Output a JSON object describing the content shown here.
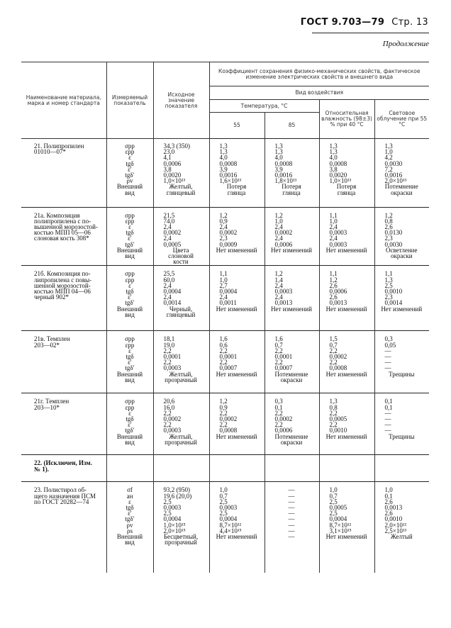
{
  "page_header": {
    "standard": "ГОСТ 9.703—79",
    "page": "Стр. 13"
  },
  "continuation": "Продолжение",
  "table_header": {
    "col_name": "Наименование материала, марка и номер стандарта",
    "col_param": "Измеряемый показатель",
    "col_initial": "Исходное значение показателя",
    "group": "Коэффициент сохранения физико-механических свойств, фактическое изменение электрических свойств и внешнего вида",
    "exposure": "Вид воздействия",
    "temperature": "Температура, °С",
    "t55": "55",
    "t85": "85",
    "humidity": "Относительная влажность (98±3) % при 40 °С",
    "light": "Световое облучение при 55 °С"
  },
  "rows": [
    {
      "name": "21. Полипропилен\n01010—07*",
      "bold": false,
      "params": [
        "σрр",
        "εрр",
        "ε",
        "tgδ",
        "ε′",
        "tgδ′",
        "ρv",
        "Внешний\nвид"
      ],
      "initial": [
        "34,3 (350)",
        "23,0",
        "4,1",
        "0,0006",
        "3,8",
        "0,0020",
        "1,0×10¹³",
        "Желтый,\nглянцевый"
      ],
      "t55": [
        "1,3",
        "1,3",
        "4,0",
        "0,0008",
        "3,9",
        "0,0016",
        "1,6×10¹³",
        "Потеря\nглянца"
      ],
      "t85": [
        "1,3",
        "1,3",
        "4,0",
        "0,0008",
        "3,9",
        "0,0016",
        "1,8×10¹³",
        "Потеря\nглянца"
      ],
      "humidity": [
        "1,3",
        "1,3",
        "4,0",
        "0,0008",
        "3,8",
        "0,0020",
        "1,0×10¹³",
        "Потеря\nглянца"
      ],
      "light": [
        "1,3",
        "1,0",
        "4,2",
        "0,0030",
        "7,2",
        "0,0016",
        "2,0×10¹³",
        "Потемнение\nокраски"
      ]
    },
    {
      "name": "21а. Композиция\nполипропилена с по-\nвышенной морозостой-\nкостью МПП 05—06\nслоновая кость 308*",
      "bold": false,
      "params": [
        "σрр",
        "εрр",
        "ε",
        "tgδ",
        "ε′",
        "tgδ′",
        "Внешний\nвид"
      ],
      "initial": [
        "21,5",
        "74,0",
        "2,4",
        "0,0002",
        "2,4",
        "0,0005",
        "Цвета\nслоновой\nкости"
      ],
      "t55": [
        "1,2",
        "0,9",
        "2,4",
        "0,0002",
        "2,3",
        "0,0009",
        "Нет изменений"
      ],
      "t85": [
        "1,2",
        "1,0",
        "2,4",
        "0,0002",
        "2,4",
        "0,0006",
        "Нет изменений"
      ],
      "humidity": [
        "1,1",
        "1,0",
        "2,4",
        "0,0003",
        "2,4",
        "0,0003",
        "Нет изменений"
      ],
      "light": [
        "1,2",
        "0,8",
        "2,6",
        "0,0130",
        "2,3",
        "0,0030",
        "Осветление\nокраски"
      ]
    },
    {
      "name": "21б. Композиция по-\nлипропилена с повы-\nшенной морозостой-\nкостью МПП 04—06\nчерный 902*",
      "bold": false,
      "params": [
        "σрр",
        "εрр",
        "ε",
        "tgδ",
        "ε′",
        "tgδ′",
        "Внешний\nвид"
      ],
      "initial": [
        "25,5",
        "60,0",
        "2,4",
        "0,0004",
        "2,4",
        "0,0014",
        "Черный,\nглянцевый"
      ],
      "t55": [
        "1,1",
        "1,0",
        "2,7",
        "0,0004",
        "2,4",
        "0,0011",
        "Нет изменений"
      ],
      "t85": [
        "1,2",
        "1,4",
        "2,4",
        "0,0003",
        "2,4",
        "0,0013",
        "Нет изменений"
      ],
      "humidity": [
        "1,1",
        "1,2",
        "2,6",
        "0,0006",
        "2,6",
        "0,0013",
        "Нет изменений"
      ],
      "light": [
        "1,1",
        "1,3",
        "2,5",
        "0,0010",
        "2,3",
        "0,0014",
        "Нет изменений"
      ]
    },
    {
      "name": "21в. Темплен\n203—02*",
      "bold": false,
      "params": [
        "σрр",
        "εрр",
        "ε",
        "tgδ",
        "ε′",
        "tgδ′",
        "Внешний\nвид"
      ],
      "initial": [
        "18,1",
        "19,0",
        "2,2",
        "0,0001",
        "2,2",
        "0,0003",
        "Желтый,\nпрозрачный"
      ],
      "t55": [
        "1,6",
        "0,6",
        "2,2",
        "0,0001",
        "2,2",
        "0,0007",
        "Нет изменений"
      ],
      "t85": [
        "1,6",
        "0,7",
        "2,2",
        "0,0001",
        "2,2",
        "0,0007",
        "Потемнение\nокраски"
      ],
      "humidity": [
        "1,5",
        "0,7",
        "2,2",
        "0,0002",
        "2,2",
        "0,0008",
        "Нет изменений"
      ],
      "light": [
        "0,3",
        "0,05",
        "—",
        "—",
        "—",
        "—",
        "Трещины"
      ]
    },
    {
      "name": "21г. Темплен\n203—10*",
      "bold": false,
      "params": [
        "σрр",
        "εрр",
        "ε",
        "tgδ",
        "ε′",
        "tgδ′",
        "Внешний\nвид"
      ],
      "initial": [
        "20,6",
        "16,0",
        "2,2",
        "0,0002",
        "2,2",
        "0,0003",
        "Желтый,\nпрозрачный"
      ],
      "t55": [
        "1,2",
        "0,9",
        "2,2",
        "0,0002",
        "2,2",
        "0,0008",
        "Нет изменений"
      ],
      "t85": [
        "0,3",
        "0,1",
        "2,2",
        "0,0002",
        "2,2",
        "0,0006",
        "Потемнение\nокраски"
      ],
      "humidity": [
        "1,3",
        "0,8",
        "2,2",
        "0,0005",
        "2,2",
        "0,0010",
        "Нет изменений"
      ],
      "light": [
        "0,1",
        "0,1",
        "—",
        "—",
        "—",
        "—",
        "Трещины"
      ]
    },
    {
      "name": "22. (Исключен, Изм.\n№ 1).",
      "bold": true,
      "params": [],
      "initial": [],
      "t55": [],
      "t85": [],
      "humidity": [],
      "light": []
    },
    {
      "name": "23. Полистирол об-\nщего назначения ПСМ\nпо ГОСТ 20282—74",
      "bold": false,
      "params": [
        "σf",
        "aн",
        "ε",
        "tgδ",
        "ε′",
        "tgδ′",
        "ρv",
        "ρs",
        "Внешний\nвид"
      ],
      "initial": [
        "93,2 (950)",
        "19,6 (20,0)",
        "2,5",
        "0,0003",
        "2,5",
        "0,0004",
        "1,0×10¹⁵",
        "2,0×10¹⁵",
        "Бесцветный,\nпрозрачный"
      ],
      "t55": [
        "1,0",
        "0,7",
        "2,5",
        "0,0003",
        "2,5",
        "0,0004",
        "8,7×10¹²",
        "4,4×10¹⁵",
        "Нет изменений"
      ],
      "t85": [
        "—",
        "—",
        "—",
        "—",
        "—",
        "—",
        "—",
        "—",
        "—"
      ],
      "humidity": [
        "1,0",
        "0,7",
        "2,5",
        "0,0005",
        "2,5",
        "0,0004",
        "8,7×10¹²",
        "3,1×10¹⁵",
        "Нет изменений"
      ],
      "light": [
        "1,0",
        "0,1",
        "2,6",
        "0,0013",
        "2,6",
        "0,0010",
        "2,0×10¹²",
        "2,5×10¹³",
        "Желтый"
      ]
    }
  ]
}
